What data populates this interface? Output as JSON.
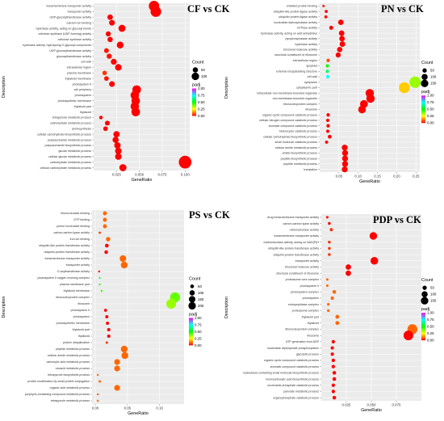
{
  "colors": {
    "padj_low": "#ff0000",
    "padj_mid_low": "#ffff00",
    "padj_mid": "#00ff00",
    "padj_mid_high": "#00ffff",
    "padj_high": "#ff00ff",
    "panel_bg": "#ebebeb",
    "grid": "#ffffff"
  },
  "chart_data": [
    {
      "type": "scatter",
      "title": "CF vs CK",
      "xlabel": "GeneRatio",
      "ylabel": "Description",
      "xlim": [
        0,
        0.105
      ],
      "xticks": [
        0.025,
        0.05,
        0.075,
        0.1
      ],
      "xtick_labels": [
        "0.025",
        "0.050",
        "0.075",
        "0.100"
      ],
      "legend": {
        "count_title": "Count",
        "count_values": [
          50,
          100
        ],
        "count_ref": 100,
        "padj_title": "padj",
        "padj_ticks": [
          "1.00",
          "0.75",
          "0.50",
          "0.25",
          "0.00"
        ]
      },
      "points": [
        {
          "term": "transmembrane transporter activity",
          "x": 0.066,
          "count": 108,
          "padj": 0.0
        },
        {
          "term": "transporter activity",
          "x": 0.068,
          "count": 112,
          "padj": 0.0
        },
        {
          "term": "UDP-glycosyltransferase activity",
          "x": 0.018,
          "count": 30,
          "padj": 0.0
        },
        {
          "term": "calcium ion binding",
          "x": 0.02,
          "count": 33,
          "padj": 0.0
        },
        {
          "term": "hydrolase activity, acting on glycosyl bonds",
          "x": 0.031,
          "count": 50,
          "padj": 0.0
        },
        {
          "term": "cellulose synthase (UDP-forming) activity",
          "x": 0.016,
          "count": 26,
          "padj": 0.0
        },
        {
          "term": "cellulose synthase activity",
          "x": 0.018,
          "count": 28,
          "padj": 0.0
        },
        {
          "term": "hydrolase activity, hydrolyzing O-glycosyl compounds",
          "x": 0.029,
          "count": 47,
          "padj": 0.0
        },
        {
          "term": "UDP-glucosyltransferase activity",
          "x": 0.014,
          "count": 23,
          "padj": 0.02
        },
        {
          "term": "glucosyltransferase activity",
          "x": 0.017,
          "count": 27,
          "padj": 0.02
        },
        {
          "term": "cell wall",
          "x": 0.022,
          "count": 35,
          "padj": 0.0
        },
        {
          "term": "extracellular region",
          "x": 0.027,
          "count": 43,
          "padj": 0.0
        },
        {
          "term": "plasma membrane",
          "x": 0.012,
          "count": 20,
          "padj": 0.05
        },
        {
          "term": "thylakoid membrane",
          "x": 0.014,
          "count": 22,
          "padj": 0.02
        },
        {
          "term": "photosystem II",
          "x": 0.02,
          "count": 32,
          "padj": 0.0
        },
        {
          "term": "cell periphery",
          "x": 0.047,
          "count": 75,
          "padj": 0.0
        },
        {
          "term": "photosystem",
          "x": 0.045,
          "count": 72,
          "padj": 0.0
        },
        {
          "term": "photosynthetic membrane",
          "x": 0.046,
          "count": 73,
          "padj": 0.0
        },
        {
          "term": "thylakoid part",
          "x": 0.045,
          "count": 72,
          "padj": 0.0
        },
        {
          "term": "thylakoid",
          "x": 0.046,
          "count": 74,
          "padj": 0.0
        },
        {
          "term": "tetrapyrrole metabolic process",
          "x": 0.008,
          "count": 13,
          "padj": 0.0
        },
        {
          "term": "carbohydrate metabolic process",
          "x": 0.015,
          "count": 24,
          "padj": 0.0
        },
        {
          "term": "photosynthesis",
          "x": 0.013,
          "count": 21,
          "padj": 0.0
        },
        {
          "term": "cellular carbohydrate biosynthetic process",
          "x": 0.025,
          "count": 40,
          "padj": 0.0
        },
        {
          "term": "polysaccharide metabolic process",
          "x": 0.024,
          "count": 38,
          "padj": 0.0
        },
        {
          "term": "polysaccharide biosynthetic process",
          "x": 0.026,
          "count": 41,
          "padj": 0.0
        },
        {
          "term": "glucan metabolic process",
          "x": 0.027,
          "count": 43,
          "padj": 0.0
        },
        {
          "term": "cellular glucan metabolic process",
          "x": 0.027,
          "count": 43,
          "padj": 0.0
        },
        {
          "term": "carbohydrate metabolic process",
          "x": 0.1,
          "count": 160,
          "padj": 0.0
        },
        {
          "term": "cellular carbohydrate metabolic process",
          "x": 0.032,
          "count": 51,
          "padj": 0.0
        }
      ]
    },
    {
      "type": "scatter",
      "title": "PN vs CK",
      "xlabel": "GeneRatio",
      "ylabel": "Description",
      "xlim": [
        0,
        0.26
      ],
      "xticks": [
        0.05,
        0.1,
        0.15,
        0.2,
        0.25
      ],
      "xtick_labels": [
        "0.05",
        "0.10",
        "0.15",
        "0.20",
        "0.25"
      ],
      "legend": {
        "count_title": "Count",
        "count_values": [
          50,
          100,
          150
        ],
        "count_ref": 150,
        "padj_title": "padj",
        "padj_ticks": [
          "1.00",
          "0.75",
          "0.50",
          "0.25",
          "0.00"
        ]
      },
      "points": [
        {
          "term": "unfolded protein binding",
          "x": 0.01,
          "count": 8,
          "padj": 0.0
        },
        {
          "term": "ubiquitin-like protein ligase activity",
          "x": 0.017,
          "count": 14,
          "padj": 0.0
        },
        {
          "term": "ubiquitin protein ligase activity",
          "x": 0.016,
          "count": 13,
          "padj": 0.0
        },
        {
          "term": "nucleoside-triphosphatase activity",
          "x": 0.055,
          "count": 44,
          "padj": 0.0
        },
        {
          "term": "GTPase activity",
          "x": 0.03,
          "count": 24,
          "padj": 0.0
        },
        {
          "term": "hydrolase activity, acting on acid anhydrides",
          "x": 0.057,
          "count": 45,
          "padj": 0.0
        },
        {
          "term": "pyrophosphatase activity",
          "x": 0.058,
          "count": 46,
          "padj": 0.0
        },
        {
          "term": "hydrolase activity",
          "x": 0.059,
          "count": 47,
          "padj": 0.0
        },
        {
          "term": "structural molecule activity",
          "x": 0.052,
          "count": 42,
          "padj": 0.0
        },
        {
          "term": "structural constituent of ribosome",
          "x": 0.048,
          "count": 39,
          "padj": 0.0
        },
        {
          "term": "extracellular region",
          "x": 0.022,
          "count": 18,
          "padj": 0.08
        },
        {
          "term": "apoplast",
          "x": 0.02,
          "count": 16,
          "padj": 0.5
        },
        {
          "term": "external encapsulating structure",
          "x": 0.02,
          "count": 16,
          "padj": 0.6
        },
        {
          "term": "cell wall",
          "x": 0.021,
          "count": 17,
          "padj": 0.75
        },
        {
          "term": "cytoplasm",
          "x": 0.248,
          "count": 198,
          "padj": 0.35
        },
        {
          "term": "cytoplasmic part",
          "x": 0.22,
          "count": 176,
          "padj": 0.2
        },
        {
          "term": "intracellular non-membrane-bounded organelle",
          "x": 0.13,
          "count": 104,
          "padj": 0.0
        },
        {
          "term": "non-membrane-bounded organelle",
          "x": 0.132,
          "count": 106,
          "padj": 0.0
        },
        {
          "term": "ribonucleoprotein complex",
          "x": 0.115,
          "count": 92,
          "padj": 0.0
        },
        {
          "term": "ribosome",
          "x": 0.11,
          "count": 88,
          "padj": 0.0
        },
        {
          "term": "organic cyclic compound catabolic process",
          "x": 0.022,
          "count": 18,
          "padj": 0.0
        },
        {
          "term": "cellular nitrogen compound catabolic process",
          "x": 0.021,
          "count": 17,
          "padj": 0.0
        },
        {
          "term": "aromatic compound catabolic process",
          "x": 0.022,
          "count": 18,
          "padj": 0.0
        },
        {
          "term": "heterocycle catabolic process",
          "x": 0.021,
          "count": 17,
          "padj": 0.0
        },
        {
          "term": "cellular carbohydrate biosynthetic process",
          "x": 0.026,
          "count": 21,
          "padj": 0.0
        },
        {
          "term": "small molecule catabolic process",
          "x": 0.018,
          "count": 15,
          "padj": 0.0
        },
        {
          "term": "cellular amide metabolic process",
          "x": 0.065,
          "count": 52,
          "padj": 0.0
        },
        {
          "term": "amide biosynthetic process",
          "x": 0.066,
          "count": 53,
          "padj": 0.0
        },
        {
          "term": "peptide biosynthetic process",
          "x": 0.066,
          "count": 53,
          "padj": 0.0
        },
        {
          "term": "peptide metabolic process",
          "x": 0.066,
          "count": 53,
          "padj": 0.0
        },
        {
          "term": "translation",
          "x": 0.065,
          "count": 52,
          "padj": 0.0
        }
      ]
    },
    {
      "type": "scatter",
      "title": "PS vs CK",
      "xlabel": "GeneRatio",
      "ylabel": "Description",
      "xlim": [
        -0.005,
        0.138
      ],
      "xticks": [
        0.0,
        0.05,
        0.1
      ],
      "xtick_labels": [
        "0.00",
        "0.05",
        "0.10"
      ],
      "legend": {
        "count_title": "Count",
        "count_values": [
          50,
          100,
          150,
          200
        ],
        "count_ref": 200,
        "padj_title": "padj",
        "padj_ticks": [
          "1.00",
          "0.75",
          "0.50",
          "0.25",
          "0.00"
        ]
      },
      "points": [
        {
          "term": "ribonucleoside binding",
          "x": 0.015,
          "count": 31,
          "padj": 0.1
        },
        {
          "term": "GTP binding",
          "x": 0.015,
          "count": 31,
          "padj": 0.1
        },
        {
          "term": "purine nucleoside binding",
          "x": 0.015,
          "count": 31,
          "padj": 0.1
        },
        {
          "term": "carbon-carbon lyase activity",
          "x": 0.007,
          "count": 10,
          "padj": 0.05
        },
        {
          "term": "iron ion binding",
          "x": 0.02,
          "count": 38,
          "padj": 0.1
        },
        {
          "term": "ubiquitin-like protein transferase activity",
          "x": 0.018,
          "count": 28,
          "padj": 0.0
        },
        {
          "term": "ubiquitin-protein transferase activity",
          "x": 0.017,
          "count": 26,
          "padj": 0.0
        },
        {
          "term": "transmembrane transporter activity",
          "x": 0.043,
          "count": 86,
          "padj": 0.1
        },
        {
          "term": "transporter activity",
          "x": 0.045,
          "count": 90,
          "padj": 0.1
        },
        {
          "term": "O-acyltransferase activity",
          "x": 0.006,
          "count": 8,
          "padj": 0.0
        },
        {
          "term": "photosystem II oxygen evolving complex",
          "x": 0.007,
          "count": 6,
          "padj": 0.55
        },
        {
          "term": "plasma membrane part",
          "x": 0.007,
          "count": 6,
          "padj": 0.5
        },
        {
          "term": "thylakoid membrane",
          "x": 0.01,
          "count": 8,
          "padj": 0.45
        },
        {
          "term": "ribonucleoprotein complex",
          "x": 0.124,
          "count": 200,
          "padj": 0.4
        },
        {
          "term": "ribosome",
          "x": 0.118,
          "count": 190,
          "padj": 0.35
        },
        {
          "term": "photosystem II",
          "x": 0.016,
          "count": 18,
          "padj": 0.0
        },
        {
          "term": "photosystem",
          "x": 0.018,
          "count": 20,
          "padj": 0.0
        },
        {
          "term": "photosynthetic membrane",
          "x": 0.019,
          "count": 20,
          "padj": 0.0
        },
        {
          "term": "thylakoid part",
          "x": 0.021,
          "count": 22,
          "padj": 0.0
        },
        {
          "term": "thylakoid",
          "x": 0.021,
          "count": 22,
          "padj": 0.0
        },
        {
          "term": "protein ubiquitination",
          "x": 0.018,
          "count": 12,
          "padj": 0.05
        },
        {
          "term": "peptide metabolic process",
          "x": 0.045,
          "count": 90,
          "padj": 0.1
        },
        {
          "term": "cellular amide metabolic process",
          "x": 0.046,
          "count": 92,
          "padj": 0.1
        },
        {
          "term": "carboxylic acid metabolic process",
          "x": 0.034,
          "count": 68,
          "padj": 0.1
        },
        {
          "term": "oxoacid metabolic process",
          "x": 0.034,
          "count": 68,
          "padj": 0.1
        },
        {
          "term": "tetrapyrrole biosynthetic process",
          "x": 0.004,
          "count": 8,
          "padj": 0.1
        },
        {
          "term": "protein modification by small protein conjugation",
          "x": 0.007,
          "count": 12,
          "padj": 0.1
        },
        {
          "term": "organic acid metabolic process",
          "x": 0.034,
          "count": 68,
          "padj": 0.1
        },
        {
          "term": "porphyrin-containing compound metabolic process",
          "x": 0.004,
          "count": 8,
          "padj": 0.1
        },
        {
          "term": "tetrapyrrole metabolic process",
          "x": 0.004,
          "count": 8,
          "padj": 0.1
        }
      ]
    },
    {
      "type": "scatter",
      "title": "PDP vs CK",
      "xlabel": "GeneRatio",
      "ylabel": "Description",
      "xlim": [
        0,
        0.1
      ],
      "xticks": [
        0.025,
        0.05,
        0.075
      ],
      "xtick_labels": [
        "0.025",
        "0.050",
        "0.075"
      ],
      "legend": {
        "count_title": "Count",
        "count_values": [
          50,
          100,
          150
        ],
        "count_ref": 150,
        "padj_title": "padj",
        "padj_ticks": [
          "1.00",
          "0.75",
          "0.50",
          "0.25",
          "0.00"
        ]
      },
      "points": [
        {
          "term": "drug transmembrane transporter activity",
          "x": 0.006,
          "count": 9,
          "padj": 0.0
        },
        {
          "term": "carbon-carbon lyase activity",
          "x": 0.008,
          "count": 12,
          "padj": 0.0
        },
        {
          "term": "oxidoreductase activity",
          "x": 0.01,
          "count": 15,
          "padj": 0.05
        },
        {
          "term": "transmembrane transporter activity",
          "x": 0.052,
          "count": 85,
          "padj": 0.0
        },
        {
          "term": "oxidoreductase activity, acting on NAD(P)H",
          "x": 0.008,
          "count": 12,
          "padj": 0.05
        },
        {
          "term": "ubiquitin-like protein transferase activity",
          "x": 0.008,
          "count": 12,
          "padj": 0.05
        },
        {
          "term": "ubiquitin-protein transferase activity",
          "x": 0.008,
          "count": 12,
          "padj": 0.05
        },
        {
          "term": "transporter activity",
          "x": 0.053,
          "count": 87,
          "padj": 0.0
        },
        {
          "term": "structural molecule activity",
          "x": 0.027,
          "count": 44,
          "padj": 0.0
        },
        {
          "term": "structural constituent of ribosome",
          "x": 0.027,
          "count": 44,
          "padj": 0.0
        },
        {
          "term": "proteasome core complex",
          "x": 0.006,
          "count": 9,
          "padj": 0.1
        },
        {
          "term": "photosystem II",
          "x": 0.006,
          "count": 9,
          "padj": 0.1
        },
        {
          "term": "photosystem complex",
          "x": 0.013,
          "count": 20,
          "padj": 0.1
        },
        {
          "term": "photosystem",
          "x": 0.011,
          "count": 16,
          "padj": 0.1
        },
        {
          "term": "endopeptidase complex",
          "x": 0.007,
          "count": 10,
          "padj": 0.1
        },
        {
          "term": "proteasome complex",
          "x": 0.007,
          "count": 10,
          "padj": 0.1
        },
        {
          "term": "thylakoid part",
          "x": 0.016,
          "count": 22,
          "padj": 0.1
        },
        {
          "term": "thylakoid",
          "x": 0.016,
          "count": 22,
          "padj": 0.1
        },
        {
          "term": "ribonucleoprotein complex",
          "x": 0.091,
          "count": 148,
          "padj": 0.1
        },
        {
          "term": "ribosome",
          "x": 0.087,
          "count": 140,
          "padj": 0.0
        },
        {
          "term": "ATP generation from ADP",
          "x": 0.012,
          "count": 18,
          "padj": 0.0
        },
        {
          "term": "nucleoside diphosphate phosphorylation",
          "x": 0.011,
          "count": 17,
          "padj": 0.0
        },
        {
          "term": "glycolytic process",
          "x": 0.011,
          "count": 17,
          "padj": 0.0
        },
        {
          "term": "organic cyclic compound catabolic process",
          "x": 0.012,
          "count": 18,
          "padj": 0.0
        },
        {
          "term": "aromatic compound catabolic process",
          "x": 0.012,
          "count": 18,
          "padj": 0.0
        },
        {
          "term": "nucleobase-containing small molecule biosynthetic process",
          "x": 0.013,
          "count": 20,
          "padj": 0.0
        },
        {
          "term": "monocarboxylic acid biosynthetic process",
          "x": 0.013,
          "count": 20,
          "padj": 0.0
        },
        {
          "term": "nucleoside phosphate catabolic process",
          "x": 0.012,
          "count": 18,
          "padj": 0.0
        },
        {
          "term": "pyruvate metabolic process",
          "x": 0.012,
          "count": 18,
          "padj": 0.0
        },
        {
          "term": "organophosphate catabolic process",
          "x": 0.013,
          "count": 20,
          "padj": 0.0
        }
      ]
    }
  ]
}
